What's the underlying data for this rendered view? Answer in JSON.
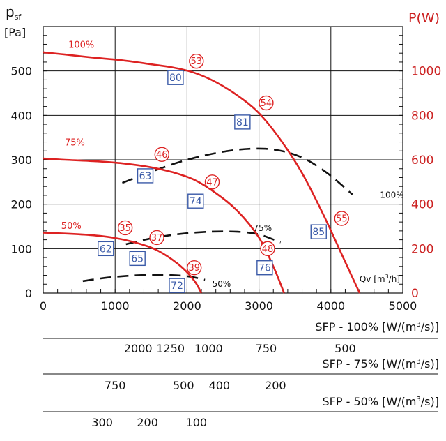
{
  "chart_data": {
    "type": "line",
    "y_left_label": [
      "p",
      "sf",
      "[Pa]"
    ],
    "y_right_label": "P(W)",
    "x_axis_label": [
      "Qv [m",
      "3",
      "/h]"
    ],
    "xlim": [
      0,
      5000
    ],
    "ylim_left": [
      0,
      600
    ],
    "ylim_right": [
      0,
      1200
    ],
    "x_ticks": [
      0,
      1000,
      2000,
      3000,
      4000,
      5000
    ],
    "y_left_ticks": [
      0,
      100,
      200,
      300,
      400,
      500
    ],
    "y_right_ticks": [
      0,
      200,
      400,
      600,
      800,
      1000
    ],
    "grid": true,
    "colors": {
      "pressure": "#dd2222",
      "power": "#111111",
      "box": "#3a5aa8",
      "right_axis": "#cc2222"
    },
    "series": [
      {
        "name": "100%",
        "kind": "pressure",
        "label_at": [
          350,
          560
        ],
        "x": [
          0,
          300,
          700,
          1100,
          1500,
          1800,
          2100,
          2400,
          2700,
          3000,
          3300,
          3600,
          3900,
          4200,
          4400
        ],
        "y": [
          542,
          537,
          530,
          524,
          515,
          508,
          496,
          475,
          445,
          405,
          345,
          270,
          175,
          70,
          0
        ]
      },
      {
        "name": "75%",
        "kind": "pressure",
        "label_at": [
          300,
          340
        ],
        "x": [
          0,
          300,
          700,
          1100,
          1500,
          1800,
          2100,
          2400,
          2700,
          3000,
          3200,
          3350
        ],
        "y": [
          303,
          300,
          297,
          292,
          283,
          272,
          255,
          225,
          185,
          125,
          60,
          0
        ]
      },
      {
        "name": "50%",
        "kind": "pressure",
        "label_at": [
          250,
          152
        ],
        "x": [
          0,
          300,
          700,
          1000,
          1300,
          1600,
          1900,
          2100,
          2200
        ],
        "y": [
          136,
          134,
          130,
          124,
          113,
          95,
          62,
          28,
          0
        ]
      },
      {
        "name": "100%",
        "kind": "power",
        "label_at": [
          4850,
          222
        ],
        "x": [
          1100,
          1500,
          2000,
          2500,
          2900,
          3250,
          3600,
          3950,
          4300
        ],
        "y": [
          248,
          273,
          300,
          318,
          325,
          322,
          305,
          270,
          222
        ]
      },
      {
        "name": "75%",
        "kind": "power",
        "label_at": [
          3050,
          148
        ],
        "x": [
          1150,
          1500,
          1900,
          2300,
          2700,
          3000,
          3300
        ],
        "y": [
          110,
          123,
          133,
          138,
          138,
          132,
          114
        ]
      },
      {
        "name": "50%",
        "kind": "power",
        "label_at": [
          2480,
          22
        ],
        "x": [
          550,
          900,
          1300,
          1650,
          2000,
          2250
        ],
        "y": [
          27,
          35,
          40,
          41,
          38,
          30
        ]
      }
    ],
    "circle_labels": [
      {
        "text": "53",
        "x": 2130,
        "y": 522
      },
      {
        "text": "54",
        "x": 3100,
        "y": 428
      },
      {
        "text": "46",
        "x": 1650,
        "y": 312
      },
      {
        "text": "47",
        "x": 2350,
        "y": 250
      },
      {
        "text": "55",
        "x": 4150,
        "y": 168
      },
      {
        "text": "35",
        "x": 1140,
        "y": 147
      },
      {
        "text": "37",
        "x": 1580,
        "y": 125
      },
      {
        "text": "48",
        "x": 3120,
        "y": 100
      },
      {
        "text": "39",
        "x": 2100,
        "y": 57
      }
    ],
    "box_labels": [
      {
        "text": "80",
        "x": 1840,
        "y": 485
      },
      {
        "text": "81",
        "x": 2770,
        "y": 385
      },
      {
        "text": "63",
        "x": 1420,
        "y": 264
      },
      {
        "text": "74",
        "x": 2120,
        "y": 207
      },
      {
        "text": "85",
        "x": 3830,
        "y": 138
      },
      {
        "text": "62",
        "x": 870,
        "y": 100
      },
      {
        "text": "65",
        "x": 1310,
        "y": 78
      },
      {
        "text": "76",
        "x": 3080,
        "y": 57
      },
      {
        "text": "72",
        "x": 1860,
        "y": 17
      }
    ]
  },
  "sfp_scales": [
    {
      "title": "SFP - 100% [W/(m",
      "title_sup": "3",
      "title_end": "/s)]",
      "ticks": [
        {
          "label": "2000",
          "x": 1320
        },
        {
          "label": "1250",
          "x": 1770
        },
        {
          "label": "1000",
          "x": 2300
        },
        {
          "label": "750",
          "x": 3100
        },
        {
          "label": "500",
          "x": 4200
        }
      ]
    },
    {
      "title": "SFP - 75% [W/(m",
      "title_sup": "3",
      "title_end": "/s)]",
      "ticks": [
        {
          "label": "750",
          "x": 1000
        },
        {
          "label": "500",
          "x": 1950
        },
        {
          "label": "400",
          "x": 2450
        },
        {
          "label": "200",
          "x": 3230
        }
      ]
    },
    {
      "title": "SFP - 50% [W/(m",
      "title_sup": "3",
      "title_end": "/s)]",
      "ticks": [
        {
          "label": "300",
          "x": 820
        },
        {
          "label": "200",
          "x": 1450
        },
        {
          "label": "100",
          "x": 2130
        }
      ]
    }
  ]
}
